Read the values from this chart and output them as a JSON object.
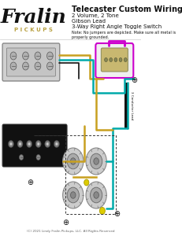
{
  "title": "Telecaster Custom Wiring",
  "subtitle_lines": [
    "2 Volume, 2 Tone",
    "Gibson Lead",
    "3-Way Right Angle Toggle Switch"
  ],
  "note": "Note: No jumpers are depicted. Make sure all metal is\nproperly grounded.",
  "footer": "(C) 2021 Lindy Fralin Pickups, LLC. All Rights Reserved",
  "bg_color": "#ffffff",
  "logo_fralin_color": "#000000",
  "logo_pickups_color": "#b8a040",
  "wire_colors": {
    "purple": "#cc00cc",
    "gold": "#c8a020",
    "teal": "#00aaaa",
    "black": "#111111",
    "green": "#228822",
    "yellow": "#ddcc00",
    "gray": "#999999"
  },
  "conductor_label": "3 Conductor Lead",
  "ground_symbol_color": "#000000"
}
